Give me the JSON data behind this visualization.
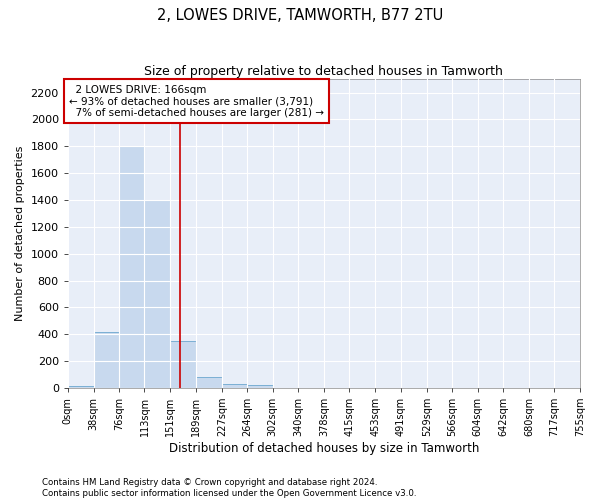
{
  "title": "2, LOWES DRIVE, TAMWORTH, B77 2TU",
  "subtitle": "Size of property relative to detached houses in Tamworth",
  "xlabel": "Distribution of detached houses by size in Tamworth",
  "ylabel": "Number of detached properties",
  "bar_color": "#c8d9ee",
  "bar_edge_color": "#7bafd4",
  "background_color": "#e8eef8",
  "grid_color": "#ffffff",
  "vline_x": 166,
  "vline_color": "#cc0000",
  "annotation_text": "  2 LOWES DRIVE: 166sqm\n← 93% of detached houses are smaller (3,791)\n  7% of semi-detached houses are larger (281) →",
  "annotation_box_color": "#cc0000",
  "bin_edges": [
    0,
    38,
    76,
    113,
    151,
    189,
    227,
    264,
    302,
    340,
    378,
    415,
    453,
    491,
    529,
    566,
    604,
    642,
    680,
    717,
    755
  ],
  "bin_counts": [
    15,
    420,
    1800,
    1400,
    350,
    80,
    30,
    20,
    0,
    0,
    0,
    0,
    0,
    0,
    0,
    0,
    0,
    0,
    0,
    0
  ],
  "ylim": [
    0,
    2300
  ],
  "yticks": [
    0,
    200,
    400,
    600,
    800,
    1000,
    1200,
    1400,
    1600,
    1800,
    2000,
    2200
  ],
  "xtick_labels": [
    "0sqm",
    "38sqm",
    "76sqm",
    "113sqm",
    "151sqm",
    "189sqm",
    "227sqm",
    "264sqm",
    "302sqm",
    "340sqm",
    "378sqm",
    "415sqm",
    "453sqm",
    "491sqm",
    "529sqm",
    "566sqm",
    "604sqm",
    "642sqm",
    "680sqm",
    "717sqm",
    "755sqm"
  ],
  "footer_text": "Contains HM Land Registry data © Crown copyright and database right 2024.\nContains public sector information licensed under the Open Government Licence v3.0.",
  "fig_width": 6.0,
  "fig_height": 5.0,
  "dpi": 100
}
